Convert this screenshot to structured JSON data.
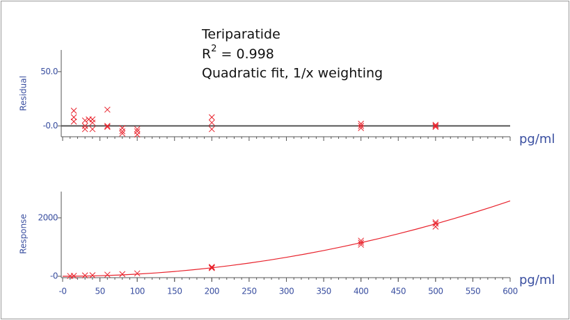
{
  "chart_data": [
    {
      "type": "scatter",
      "y_label": "Residual",
      "x_label": "pg/ml",
      "annotation": {
        "name": "Teriparatide",
        "r_base": "R",
        "r_sup": "2",
        "r_rest": " = 0.998",
        "fit_note": "Quadratic fit, 1/x weighting"
      },
      "color": "#e8202a",
      "xlim": [
        0,
        600
      ],
      "ylim": [
        -10,
        70
      ],
      "yticks": [
        {
          "value": 50,
          "label": "50.0"
        },
        {
          "value": 0,
          "label": "-0.0"
        }
      ],
      "x": [
        15,
        15,
        15,
        30,
        30,
        30,
        35,
        40,
        40,
        40,
        60,
        60,
        60,
        80,
        80,
        80,
        100,
        100,
        100,
        200,
        200,
        200,
        400,
        400,
        400,
        500,
        500,
        500
      ],
      "values": [
        14,
        8,
        4,
        5,
        0,
        -3,
        6,
        6,
        3,
        -3,
        15,
        0,
        -1,
        -2,
        -5,
        -7,
        -3,
        -5,
        -8,
        8,
        3,
        -3,
        2,
        0,
        -2,
        1,
        0,
        -1
      ]
    },
    {
      "type": "scatter",
      "y_label": "Response",
      "x_label": "pg/ml",
      "color": "#e8202a",
      "xlim": [
        0,
        600
      ],
      "ylim": [
        0,
        2900
      ],
      "xticks": [
        {
          "value": 0,
          "label": "-0"
        },
        50,
        100,
        150,
        200,
        250,
        300,
        350,
        400,
        450,
        500,
        550,
        600
      ],
      "yticks": [
        2000,
        {
          "value": 0,
          "label": "-0"
        }
      ],
      "x": [
        10,
        15,
        30,
        40,
        60,
        80,
        100,
        200,
        200,
        200,
        400,
        400,
        400,
        500,
        500,
        500
      ],
      "values": [
        10,
        15,
        30,
        35,
        55,
        75,
        100,
        280,
        300,
        320,
        1080,
        1150,
        1220,
        1700,
        1800,
        1850
      ],
      "fit": {
        "x": [
          0,
          25,
          50,
          75,
          100,
          125,
          150,
          175,
          200,
          225,
          250,
          275,
          300,
          325,
          350,
          375,
          400,
          425,
          450,
          475,
          500,
          525,
          550,
          575,
          600
        ],
        "values": [
          0,
          5.1,
          19.1,
          42.0,
          73.8,
          114.5,
          164.1,
          222.6,
          290,
          366.3,
          451.6,
          545.7,
          648.8,
          760.7,
          881.6,
          1011.3,
          1150,
          1297.5,
          1454.1,
          1619.4,
          1793.8,
          1976.9,
          2169.1,
          2370.0,
          2580
        ]
      }
    }
  ]
}
